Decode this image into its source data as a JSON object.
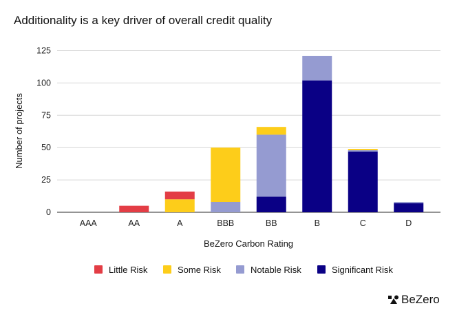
{
  "chart_data": {
    "type": "bar",
    "stacked": true,
    "title": "Additionality is a key driver of overall credit quality",
    "xlabel": "BeZero Carbon Rating",
    "ylabel": "Number of projects",
    "ylim": [
      0,
      125
    ],
    "yticks": [
      0,
      25,
      50,
      75,
      100,
      125
    ],
    "grid": true,
    "legend_position": "bottom",
    "categories": [
      "AAA",
      "AA",
      "A",
      "BBB",
      "BB",
      "B",
      "C",
      "D"
    ],
    "series": [
      {
        "name": "Significant Risk",
        "color": "#0a0085",
        "values": [
          0,
          0,
          0,
          0,
          12,
          102,
          47,
          7
        ]
      },
      {
        "name": "Notable Risk",
        "color": "#959bd1",
        "values": [
          0,
          0,
          0,
          8,
          48,
          19,
          1,
          1
        ]
      },
      {
        "name": "Some Risk",
        "color": "#fdcd1a",
        "values": [
          0,
          0,
          10,
          42,
          6,
          0,
          1,
          0
        ]
      },
      {
        "name": "Little Risk",
        "color": "#e33d45",
        "values": [
          0,
          5,
          6,
          0,
          0,
          0,
          0,
          0
        ]
      }
    ],
    "legend_order": [
      "Little Risk",
      "Some Risk",
      "Notable Risk",
      "Significant Risk"
    ]
  },
  "brand": {
    "logo_text": "BeZero"
  }
}
